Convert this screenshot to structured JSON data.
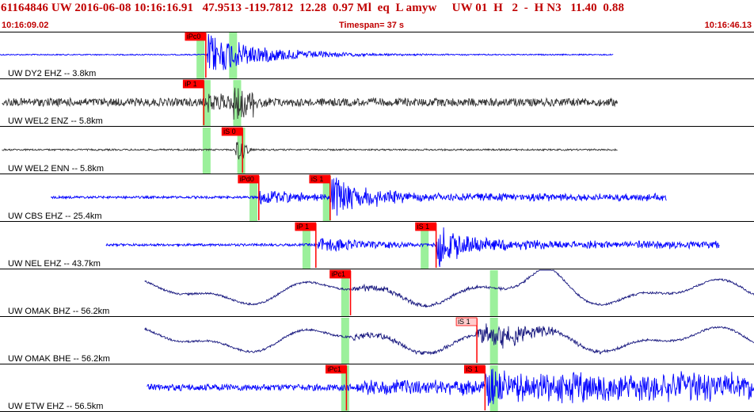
{
  "header": {
    "title": "61164846 UW 2016-06-08 10:16:16.91   47.9513 -119.7812  12.28  0.97 Ml  eq  L amyw     UW 01  H   2  -  H N3   11.40  0.88",
    "start_time": "10:16:09.02",
    "timespan": "Timespan=  37 s",
    "end_time": "10:16:46.13"
  },
  "colors": {
    "blue": "#0000ff",
    "dark": "#333333",
    "navy": "#1a1a80",
    "pick_box": "#ff0000",
    "pick_box_light": "#ffcccc",
    "window": "#90ee90",
    "header_text": "#c00000"
  },
  "chart_data": {
    "type": "seismogram",
    "time_axis": {
      "start": "10:16:09.02",
      "end": "10:16:46.13",
      "span_s": 37
    },
    "channels": [
      {
        "label": "UW DY2 EHZ -- 3.8km",
        "color": "blue",
        "wave": "local",
        "trace_start_s": 0.0,
        "trace_end_s": 30.1,
        "onset_s": 10.2,
        "picks": [
          {
            "label": "iPc0",
            "t_s": 10.1,
            "style": "red"
          }
        ],
        "windows": [
          {
            "t_s": 9.8
          },
          {
            "t_s": 11.4
          }
        ]
      },
      {
        "label": "UW WEL2 ENZ -- 5.8km",
        "color": "dark",
        "wave": "noisy",
        "trace_start_s": 0.1,
        "trace_end_s": 30.3,
        "onset_s": 10.2,
        "picks": [
          {
            "label": "iP 1",
            "t_s": 10.0,
            "style": "red"
          }
        ],
        "windows": [
          {
            "t_s": 10.1
          },
          {
            "t_s": 11.6
          }
        ]
      },
      {
        "label": "UW WEL2 ENN -- 5.8km",
        "color": "dark",
        "wave": "quiet",
        "trace_start_s": 0.1,
        "trace_end_s": 30.3,
        "onset_s": 11.9,
        "picks": [
          {
            "label": "iS 0",
            "t_s": 11.9,
            "style": "red"
          }
        ],
        "windows": [
          {
            "t_s": 10.1
          },
          {
            "t_s": 11.8
          }
        ]
      },
      {
        "label": "UW CBS EHZ -- 25.4km",
        "color": "blue",
        "wave": "regional",
        "trace_start_s": 2.5,
        "trace_end_s": 32.7,
        "onset_s": 12.7,
        "picks": [
          {
            "label": "iPd0",
            "t_s": 12.7,
            "style": "red"
          },
          {
            "label": "iS 1",
            "t_s": 16.2,
            "style": "red"
          }
        ],
        "windows": [
          {
            "t_s": 12.4
          },
          {
            "t_s": 16.0
          }
        ]
      },
      {
        "label": "UW NEL EHZ -- 43.7km",
        "color": "blue",
        "wave": "regional",
        "trace_start_s": 5.2,
        "trace_end_s": 35.3,
        "onset_s": 15.6,
        "picks": [
          {
            "label": "iP 1",
            "t_s": 15.5,
            "style": "red"
          },
          {
            "label": "iS 1",
            "t_s": 21.4,
            "style": "red"
          }
        ],
        "windows": [
          {
            "t_s": 15.0
          },
          {
            "t_s": 20.8
          }
        ]
      },
      {
        "label": "UW OMAK BHZ -- 56.2km",
        "color": "navy",
        "wave": "broadband",
        "trace_start_s": 7.1,
        "trace_end_s": 37.1,
        "onset_s": 17.3,
        "picks": [
          {
            "label": "iPc1",
            "t_s": 17.2,
            "style": "red"
          }
        ],
        "windows": [
          {
            "t_s": 16.9
          },
          {
            "t_s": 24.2
          }
        ]
      },
      {
        "label": "UW OMAK BHE -- 56.2km",
        "color": "navy",
        "wave": "broadband",
        "trace_start_s": 7.1,
        "trace_end_s": 37.1,
        "onset_s": 17.3,
        "picks": [
          {
            "label": "iS 1",
            "t_s": 23.4,
            "style": "light"
          }
        ],
        "windows": [
          {
            "t_s": 16.9
          },
          {
            "t_s": 24.2
          }
        ]
      },
      {
        "label": "UW ETW EHZ -- 56.5km",
        "color": "blue",
        "wave": "noisyband",
        "trace_start_s": 7.2,
        "trace_end_s": 37.1,
        "onset_s": 17.5,
        "picks": [
          {
            "label": "iPc1",
            "t_s": 17.0,
            "style": "red"
          },
          {
            "label": "iS 1",
            "t_s": 23.8,
            "style": "red"
          }
        ],
        "windows": [
          {
            "t_s": 16.9
          },
          {
            "t_s": 24.2
          }
        ]
      }
    ]
  }
}
